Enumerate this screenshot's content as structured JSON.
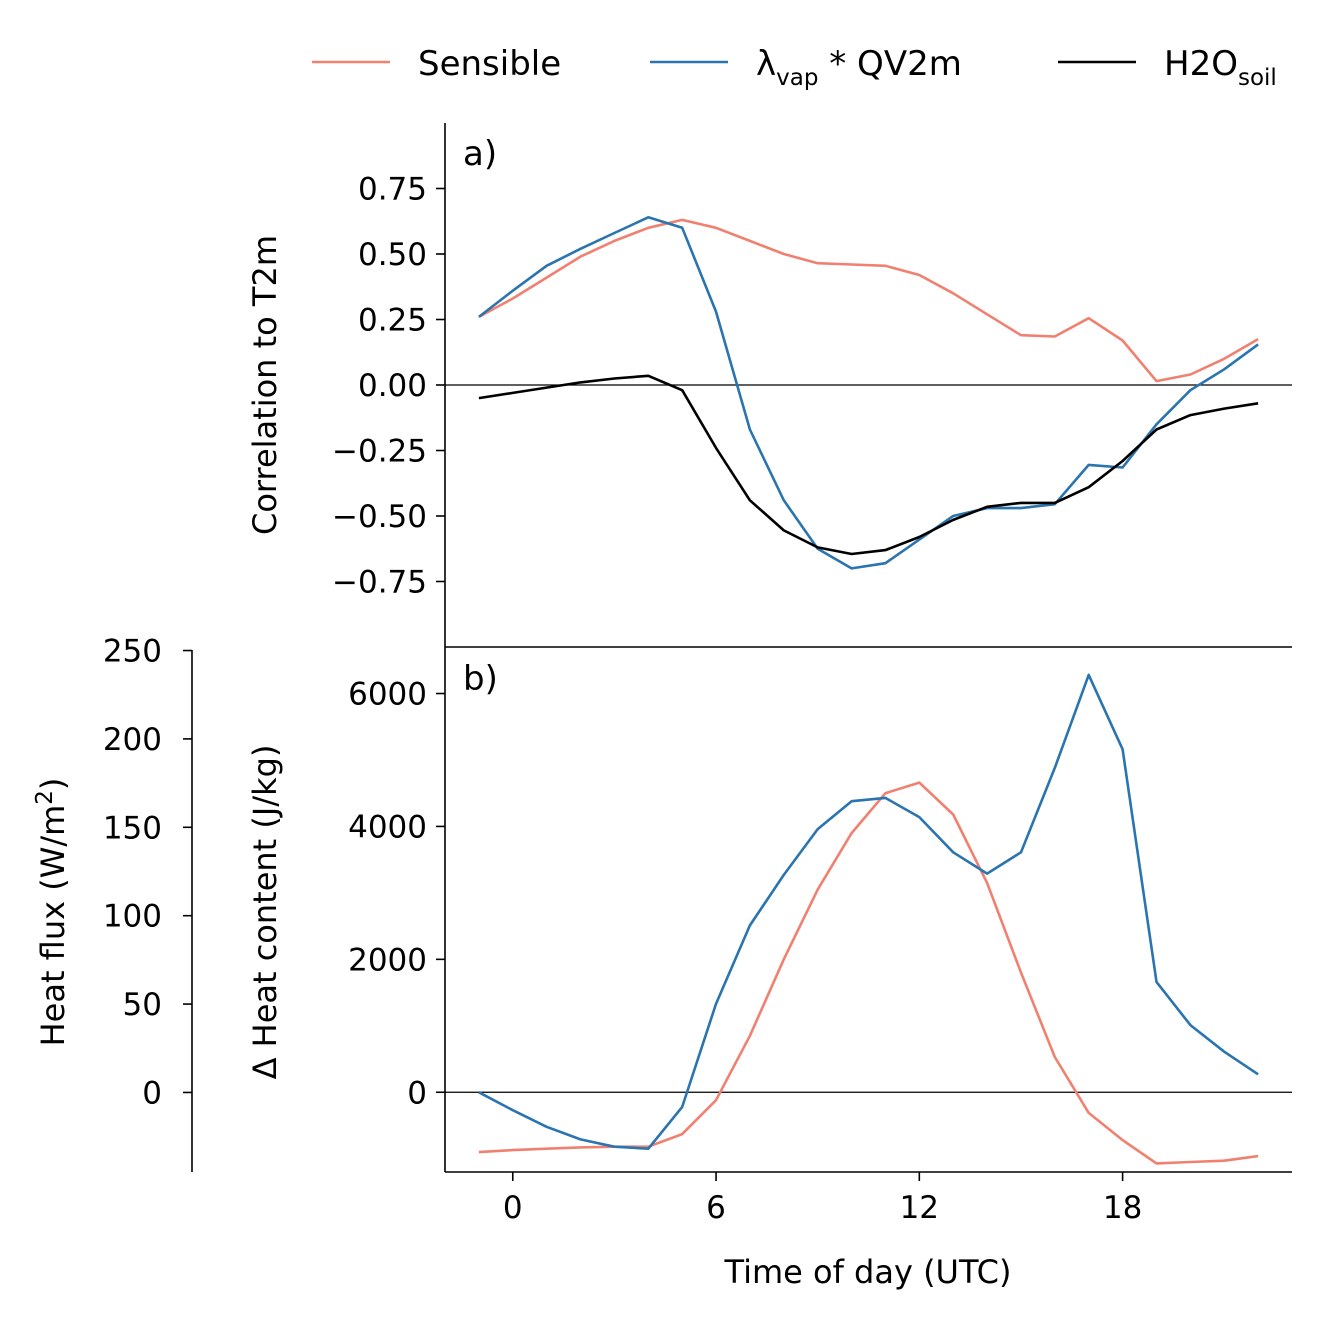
{
  "legend": [
    {
      "label": "Sensible",
      "color": "#f08070"
    },
    {
      "label": "λ",
      "sub": "vap",
      "suffix": " * QV2m",
      "color": "#2a74b0"
    },
    {
      "label": "H2O",
      "sub": "soil",
      "suffix": "",
      "color": "#000000"
    }
  ],
  "chart_data": [
    {
      "type": "line",
      "panel_label": "a)",
      "ylabel": "Correlation to T2m",
      "xlim": [
        -2,
        23
      ],
      "ylim": [
        -1.0,
        1.0
      ],
      "yticks": [
        "0.75",
        "0.50",
        "0.25",
        "0.00",
        "−0.25",
        "−0.50",
        "−0.75"
      ],
      "ytick_values": [
        0.75,
        0.5,
        0.25,
        0.0,
        -0.25,
        -0.5,
        -0.75
      ],
      "x": [
        -1,
        0,
        1,
        2,
        3,
        4,
        5,
        6,
        7,
        8,
        9,
        10,
        11,
        12,
        13,
        14,
        15,
        16,
        17,
        18,
        19,
        20,
        21,
        22
      ],
      "series": [
        {
          "name": "Sensible",
          "color": "#f08070",
          "values": [
            0.26,
            0.33,
            0.41,
            0.49,
            0.55,
            0.6,
            0.63,
            0.6,
            0.55,
            0.5,
            0.465,
            0.46,
            0.455,
            0.42,
            0.35,
            0.27,
            0.19,
            0.185,
            0.255,
            0.17,
            0.015,
            0.04,
            0.1,
            0.175
          ]
        },
        {
          "name": "λvap * QV2m",
          "color": "#2a74b0",
          "values": [
            0.26,
            0.36,
            0.455,
            0.52,
            0.58,
            0.64,
            0.6,
            0.28,
            -0.17,
            -0.44,
            -0.625,
            -0.7,
            -0.68,
            -0.59,
            -0.5,
            -0.47,
            -0.47,
            -0.455,
            -0.305,
            -0.315,
            -0.15,
            -0.02,
            0.06,
            0.155
          ]
        },
        {
          "name": "H2Osoil",
          "color": "#000000",
          "values": [
            -0.05,
            -0.03,
            -0.01,
            0.01,
            0.025,
            0.035,
            -0.02,
            -0.24,
            -0.44,
            -0.555,
            -0.62,
            -0.645,
            -0.63,
            -0.58,
            -0.515,
            -0.465,
            -0.45,
            -0.45,
            -0.39,
            -0.29,
            -0.17,
            -0.115,
            -0.09,
            -0.07
          ]
        }
      ]
    },
    {
      "type": "line",
      "panel_label": "b)",
      "xlabel": "Time of day (UTC)",
      "ylabel": "Δ Heat content (J/kg)",
      "ylabel2": "Heat flux (W/m",
      "ylabel2_sup": "2",
      "ylabel2_suffix": ")",
      "xlim": [
        -2,
        23
      ],
      "ylim": [
        -1200,
        6700
      ],
      "yticks": [
        "6000",
        "4000",
        "2000",
        "0"
      ],
      "ytick_values": [
        6000,
        4000,
        2000,
        0
      ],
      "y2lim": [
        -45,
        252
      ],
      "y2ticks": [
        "250",
        "200",
        "150",
        "100",
        "50",
        "0"
      ],
      "y2tick_values": [
        250,
        200,
        150,
        100,
        50,
        0
      ],
      "xticks": [
        "0",
        "6",
        "12",
        "18"
      ],
      "xtick_values": [
        0,
        6,
        12,
        18
      ],
      "x": [
        -1,
        0,
        1,
        2,
        3,
        4,
        5,
        6,
        7,
        8,
        9,
        10,
        11,
        12,
        13,
        14,
        15,
        16,
        17,
        18,
        19,
        20,
        21,
        22
      ],
      "series": [
        {
          "name": "Sensible",
          "color": "#f08070",
          "values": [
            -900,
            -870,
            -850,
            -830,
            -820,
            -820,
            -630,
            -120,
            850,
            2000,
            3050,
            3900,
            4500,
            4660,
            4180,
            3150,
            1800,
            530,
            -310,
            -720,
            -1070,
            -1050,
            -1030,
            -960
          ]
        },
        {
          "name": "λvap * QV2m",
          "color": "#2a74b0",
          "values": [
            0,
            -270,
            -520,
            -710,
            -820,
            -850,
            -220,
            1330,
            2510,
            3270,
            3960,
            4380,
            4430,
            4140,
            3610,
            3290,
            3610,
            4880,
            6280,
            5160,
            1660,
            1010,
            610,
            270
          ]
        }
      ]
    }
  ]
}
